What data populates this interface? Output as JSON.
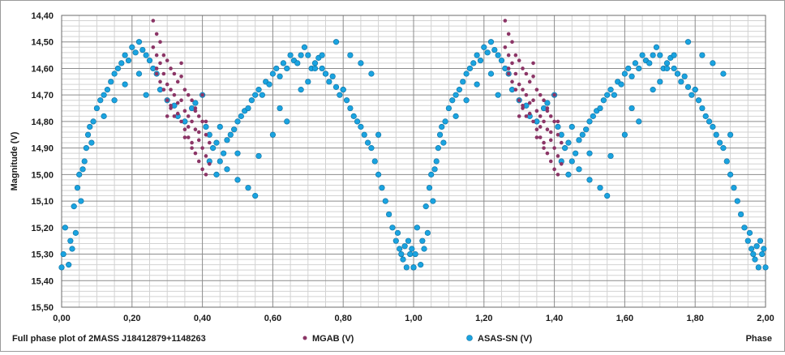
{
  "chart_data": {
    "type": "scatter",
    "title": "Full phase plot of 2MASS J18412879+1148263",
    "xlabel": "Phase",
    "ylabel": "Magnitude  (V)",
    "xlim": [
      0,
      2
    ],
    "ylim": [
      14.4,
      15.5
    ],
    "y_inverted": true,
    "x_major_ticks": [
      "0,00",
      "0,20",
      "0,40",
      "0,60",
      "0,80",
      "1,00",
      "1,20",
      "1,40",
      "1,60",
      "1,80",
      "2,00"
    ],
    "y_major_ticks": [
      "14,40",
      "14,50",
      "14,60",
      "14,70",
      "14,80",
      "14,90",
      "15,00",
      "15,10",
      "15,20",
      "15,30",
      "15,40",
      "15,50"
    ],
    "x_minor_step": 0.05,
    "y_minor_step": 0.02,
    "grid": true,
    "legend": "bottom",
    "series": [
      {
        "name": "MGAB (V)",
        "color": "#8b3566",
        "marker": "small-dot",
        "x": [
          0.26,
          0.26,
          0.27,
          0.27,
          0.27,
          0.28,
          0.28,
          0.28,
          0.29,
          0.29,
          0.3,
          0.3,
          0.3,
          0.31,
          0.31,
          0.31,
          0.32,
          0.32,
          0.32,
          0.33,
          0.33,
          0.34,
          0.34,
          0.34,
          0.35,
          0.35,
          0.35,
          0.36,
          0.36,
          0.36,
          0.37,
          0.37,
          0.37,
          0.38,
          0.38,
          0.38,
          0.39,
          0.39,
          0.39,
          0.4,
          0.4,
          0.4,
          0.41,
          0.41,
          0.41,
          0.42,
          0.42,
          0.29,
          0.33,
          0.36,
          0.37,
          0.39,
          0.41,
          0.31,
          0.35,
          0.38,
          0.4,
          0.27,
          0.3,
          0.34
        ],
        "y": [
          14.42,
          14.52,
          14.47,
          14.55,
          14.6,
          14.5,
          14.58,
          14.65,
          14.55,
          14.62,
          14.57,
          14.66,
          14.72,
          14.6,
          14.68,
          14.75,
          14.62,
          14.7,
          14.78,
          14.65,
          14.73,
          14.63,
          14.72,
          14.8,
          14.68,
          14.76,
          14.83,
          14.7,
          14.78,
          14.86,
          14.72,
          14.8,
          14.9,
          14.75,
          14.83,
          14.92,
          14.78,
          14.87,
          14.95,
          14.8,
          14.9,
          14.98,
          14.85,
          14.93,
          15.0,
          14.88,
          14.96,
          14.68,
          14.77,
          14.82,
          14.88,
          14.84,
          14.8,
          14.74,
          14.86,
          14.76,
          14.7,
          14.62,
          14.78,
          14.58
        ]
      },
      {
        "name": "ASAS-SN (V)",
        "color": "#1aa3e0",
        "marker": "circle",
        "x": [
          0.0,
          0.005,
          0.01,
          0.02,
          0.025,
          0.03,
          0.035,
          0.04,
          0.045,
          0.05,
          0.055,
          0.06,
          0.065,
          0.07,
          0.075,
          0.08,
          0.085,
          0.09,
          0.1,
          0.11,
          0.12,
          0.13,
          0.14,
          0.15,
          0.16,
          0.17,
          0.18,
          0.19,
          0.2,
          0.21,
          0.22,
          0.23,
          0.24,
          0.25,
          0.26,
          0.27,
          0.12,
          0.15,
          0.18,
          0.22,
          0.24,
          0.28,
          0.3,
          0.32,
          0.33,
          0.35,
          0.37,
          0.38,
          0.4,
          0.41,
          0.42,
          0.43,
          0.44,
          0.45,
          0.46,
          0.47,
          0.48,
          0.49,
          0.5,
          0.51,
          0.52,
          0.53,
          0.54,
          0.55,
          0.56,
          0.57,
          0.58,
          0.59,
          0.6,
          0.61,
          0.62,
          0.63,
          0.64,
          0.65,
          0.66,
          0.67,
          0.68,
          0.69,
          0.7,
          0.71,
          0.72,
          0.73,
          0.74,
          0.75,
          0.76,
          0.77,
          0.78,
          0.79,
          0.8,
          0.81,
          0.82,
          0.83,
          0.84,
          0.85,
          0.86,
          0.87,
          0.88,
          0.89,
          0.9,
          0.91,
          0.92,
          0.93,
          0.94,
          0.95,
          0.955,
          0.96,
          0.965,
          0.97,
          0.975,
          0.98,
          0.985,
          0.99,
          0.995,
          1.0,
          0.7,
          0.72,
          0.74,
          0.78,
          0.82,
          0.85,
          0.88,
          0.42,
          0.44,
          0.47,
          0.5,
          0.53,
          0.56,
          0.6,
          0.64,
          0.68,
          0.45,
          0.5,
          0.55,
          0.62,
          0.75,
          0.8,
          0.9
        ],
        "y": [
          15.35,
          15.3,
          15.2,
          15.34,
          15.25,
          15.28,
          15.12,
          15.22,
          15.05,
          15.0,
          15.1,
          14.98,
          14.95,
          14.9,
          14.85,
          14.82,
          14.88,
          14.8,
          14.75,
          14.72,
          14.7,
          14.68,
          14.65,
          14.62,
          14.6,
          14.58,
          14.55,
          14.57,
          14.52,
          14.54,
          14.5,
          14.53,
          14.55,
          14.57,
          14.6,
          14.62,
          14.78,
          14.72,
          14.66,
          14.62,
          14.7,
          14.68,
          14.72,
          14.74,
          14.78,
          14.8,
          14.75,
          14.73,
          14.7,
          14.82,
          14.85,
          14.9,
          14.88,
          14.95,
          14.92,
          14.87,
          14.85,
          14.83,
          14.8,
          14.78,
          14.76,
          14.75,
          14.72,
          14.7,
          14.68,
          14.7,
          14.65,
          14.66,
          14.62,
          14.6,
          14.63,
          14.58,
          14.6,
          14.55,
          14.57,
          14.58,
          14.55,
          14.52,
          14.55,
          14.6,
          14.58,
          14.56,
          14.6,
          14.62,
          14.65,
          14.63,
          14.67,
          14.7,
          14.68,
          14.72,
          14.75,
          14.78,
          14.8,
          14.82,
          14.85,
          14.88,
          14.9,
          14.95,
          15.0,
          15.05,
          15.1,
          15.15,
          15.2,
          15.25,
          15.22,
          15.28,
          15.3,
          15.32,
          15.27,
          15.35,
          15.25,
          15.3,
          15.28,
          15.35,
          14.65,
          14.6,
          14.55,
          14.5,
          14.55,
          14.58,
          14.62,
          14.95,
          15.0,
          14.98,
          15.02,
          15.05,
          14.93,
          14.85,
          14.8,
          14.68,
          14.82,
          14.92,
          15.08,
          14.75,
          14.62,
          14.68,
          14.85
        ]
      }
    ]
  }
}
